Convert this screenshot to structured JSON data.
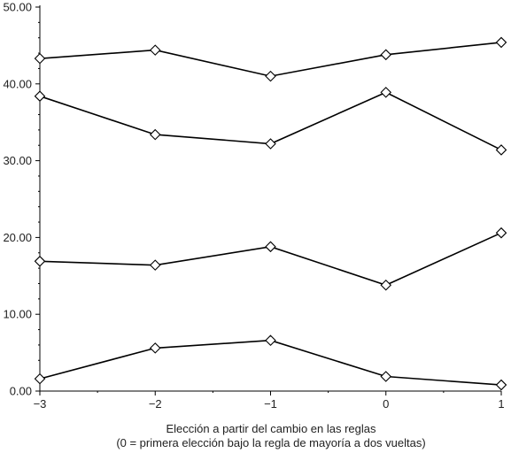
{
  "chart_data": {
    "type": "line",
    "x": [
      -3,
      -2,
      -1,
      0,
      1
    ],
    "x_tick_labels": [
      "−3",
      "−2",
      "−1",
      "0",
      "1"
    ],
    "y_tick_labels": [
      "0.00",
      "10.00",
      "20.00",
      "30.00",
      "40.00",
      "50.00"
    ],
    "xlabel_line1": "Elección a partir del cambio en las reglas",
    "xlabel_line2": "(0 = primera elección bajo la regla de mayoría a dos vueltas)",
    "ylabel": "",
    "xlim": [
      -3,
      1
    ],
    "ylim": [
      0,
      50
    ],
    "y_ticks": [
      0,
      10,
      20,
      30,
      40,
      50
    ],
    "grid": false,
    "legend": "none",
    "marker": "diamond",
    "line_color": "#000000",
    "series": [
      {
        "values": [
          43.3,
          44.4,
          41.0,
          43.8,
          45.4
        ]
      },
      {
        "values": [
          38.4,
          33.4,
          32.2,
          38.9,
          31.4
        ]
      },
      {
        "values": [
          16.9,
          16.4,
          18.8,
          13.8,
          20.6
        ]
      },
      {
        "values": [
          1.6,
          5.6,
          6.6,
          1.9,
          0.8
        ]
      }
    ]
  }
}
